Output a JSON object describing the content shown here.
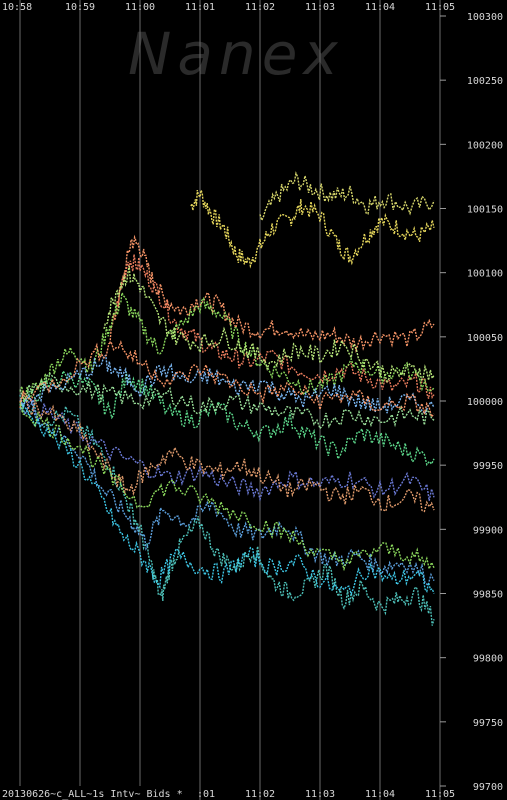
{
  "chart_data": {
    "type": "scatter",
    "watermark": "Nanex",
    "footer_label": "20130626~c_ALL~1s Intv~ Bids *",
    "x_ticks": [
      "10:58",
      "10:59",
      "11:00",
      "11:01",
      "11:02",
      "11:03",
      "11:04",
      "11:05"
    ],
    "y_ticks": [
      100300,
      100250,
      100200,
      100150,
      100100,
      100050,
      100000,
      99950,
      99900,
      99850,
      99800,
      99750,
      99700
    ],
    "xlim": [
      "10:58",
      "11:05"
    ],
    "ylim": [
      99700,
      100300
    ],
    "grid": "vertical",
    "colors": [
      "#f0e060",
      "#e0e070",
      "#ff9a6a",
      "#f08060",
      "#90e060",
      "#60e090",
      "#50c8c0",
      "#60a8e8",
      "#7080e0",
      "#a0e8a0",
      "#c0f080",
      "#40d0f0",
      "#e8a070",
      "#80c0ff"
    ],
    "series": [
      {
        "color_index": 0,
        "points": [
          [
            2.85,
            100152
          ],
          [
            3.0,
            100162
          ],
          [
            3.2,
            100145
          ],
          [
            3.4,
            100135
          ],
          [
            3.6,
            100115
          ],
          [
            3.8,
            100108
          ],
          [
            4.0,
            100120
          ],
          [
            4.2,
            100135
          ],
          [
            4.5,
            100142
          ],
          [
            4.7,
            100152
          ],
          [
            5.0,
            100145
          ],
          [
            5.3,
            100122
          ],
          [
            5.5,
            100112
          ],
          [
            5.8,
            100130
          ],
          [
            6.0,
            100140
          ],
          [
            6.3,
            100135
          ],
          [
            6.6,
            100128
          ],
          [
            6.9,
            100135
          ]
        ]
      },
      {
        "color_index": 1,
        "points": [
          [
            4.0,
            100140
          ],
          [
            4.3,
            100160
          ],
          [
            4.6,
            100172
          ],
          [
            4.9,
            100165
          ],
          [
            5.2,
            100160
          ],
          [
            5.5,
            100162
          ],
          [
            5.8,
            100152
          ],
          [
            6.1,
            100158
          ],
          [
            6.5,
            100150
          ],
          [
            6.9,
            100156
          ]
        ]
      },
      {
        "color_index": 2,
        "points": [
          [
            1.5,
            100050
          ],
          [
            1.7,
            100090
          ],
          [
            1.85,
            100125
          ],
          [
            2.0,
            100120
          ],
          [
            2.2,
            100095
          ],
          [
            2.4,
            100080
          ],
          [
            2.7,
            100070
          ],
          [
            3.0,
            100080
          ],
          [
            3.3,
            100075
          ],
          [
            3.6,
            100060
          ],
          [
            4.0,
            100055
          ],
          [
            4.4,
            100058
          ],
          [
            4.8,
            100050
          ],
          [
            5.2,
            100052
          ],
          [
            5.6,
            100045
          ],
          [
            6.0,
            100052
          ],
          [
            6.5,
            100048
          ],
          [
            6.9,
            100060
          ]
        ]
      },
      {
        "color_index": 3,
        "points": [
          [
            1.6,
            100070
          ],
          [
            1.8,
            100110
          ],
          [
            2.0,
            100105
          ],
          [
            2.3,
            100085
          ],
          [
            2.6,
            100060
          ],
          [
            2.9,
            100050
          ],
          [
            3.2,
            100040
          ],
          [
            3.5,
            100035
          ],
          [
            3.8,
            100030
          ],
          [
            4.2,
            100035
          ],
          [
            4.6,
            100025
          ],
          [
            5.0,
            100020
          ],
          [
            5.4,
            100025
          ],
          [
            5.8,
            100018
          ],
          [
            6.2,
            100010
          ],
          [
            6.6,
            100015
          ],
          [
            6.9,
            100005
          ]
        ]
      },
      {
        "color_index": 4,
        "points": [
          [
            0.0,
            100005
          ],
          [
            0.3,
            100010
          ],
          [
            0.6,
            100030
          ],
          [
            0.9,
            100040
          ],
          [
            1.2,
            100025
          ],
          [
            1.5,
            100060
          ],
          [
            1.7,
            100080
          ],
          [
            2.0,
            100060
          ],
          [
            2.3,
            100040
          ],
          [
            2.6,
            100055
          ],
          [
            3.0,
            100075
          ],
          [
            3.3,
            100070
          ],
          [
            3.7,
            100045
          ],
          [
            4.0,
            100030
          ],
          [
            4.4,
            100020
          ],
          [
            4.8,
            100010
          ],
          [
            5.2,
            100015
          ],
          [
            5.6,
            100030
          ],
          [
            6.0,
            100020
          ],
          [
            6.4,
            100025
          ],
          [
            6.9,
            100010
          ]
        ]
      },
      {
        "color_index": 5,
        "points": [
          [
            0.0,
            99995
          ],
          [
            0.4,
            100010
          ],
          [
            0.8,
            100020
          ],
          [
            1.2,
            100010
          ],
          [
            1.5,
            99990
          ],
          [
            1.8,
            100020
          ],
          [
            2.1,
            100010
          ],
          [
            2.5,
            99990
          ],
          [
            2.9,
            99985
          ],
          [
            3.3,
            99995
          ],
          [
            3.7,
            99980
          ],
          [
            4.1,
            99975
          ],
          [
            4.5,
            99985
          ],
          [
            4.9,
            99970
          ],
          [
            5.3,
            99960
          ],
          [
            5.7,
            99975
          ],
          [
            6.1,
            99968
          ],
          [
            6.5,
            99960
          ],
          [
            6.9,
            99955
          ]
        ]
      },
      {
        "color_index": 6,
        "points": [
          [
            0.0,
            100000
          ],
          [
            0.4,
            99985
          ],
          [
            0.8,
            99990
          ],
          [
            1.2,
            99970
          ],
          [
            1.5,
            99950
          ],
          [
            1.8,
            99920
          ],
          [
            2.0,
            99900
          ],
          [
            2.2,
            99870
          ],
          [
            2.35,
            99845
          ],
          [
            2.5,
            99870
          ],
          [
            2.7,
            99890
          ],
          [
            3.0,
            99905
          ],
          [
            3.3,
            99880
          ],
          [
            3.6,
            99870
          ],
          [
            3.9,
            99885
          ],
          [
            4.2,
            99860
          ],
          [
            4.5,
            99850
          ],
          [
            4.8,
            99855
          ],
          [
            5.1,
            99870
          ],
          [
            5.4,
            99845
          ],
          [
            5.7,
            99855
          ],
          [
            6.0,
            99840
          ],
          [
            6.3,
            99845
          ],
          [
            6.6,
            99850
          ],
          [
            6.9,
            99830
          ]
        ]
      },
      {
        "color_index": 7,
        "points": [
          [
            0.0,
            100002
          ],
          [
            0.5,
            99980
          ],
          [
            1.0,
            99960
          ],
          [
            1.4,
            99930
          ],
          [
            1.8,
            99910
          ],
          [
            2.1,
            99890
          ],
          [
            2.4,
            99915
          ],
          [
            2.8,
            99905
          ],
          [
            3.2,
            99920
          ],
          [
            3.6,
            99900
          ],
          [
            4.0,
            99895
          ],
          [
            4.4,
            99905
          ],
          [
            4.8,
            99885
          ],
          [
            5.2,
            99875
          ],
          [
            5.6,
            99880
          ],
          [
            6.0,
            99870
          ],
          [
            6.4,
            99875
          ],
          [
            6.9,
            99860
          ]
        ]
      },
      {
        "color_index": 8,
        "points": [
          [
            0.0,
            99998
          ],
          [
            0.5,
            99990
          ],
          [
            1.0,
            99975
          ],
          [
            1.5,
            99960
          ],
          [
            2.0,
            99950
          ],
          [
            2.5,
            99940
          ],
          [
            3.0,
            99945
          ],
          [
            3.5,
            99935
          ],
          [
            4.0,
            99930
          ],
          [
            4.5,
            99940
          ],
          [
            5.0,
            99935
          ],
          [
            5.5,
            99940
          ],
          [
            6.0,
            99930
          ],
          [
            6.5,
            99938
          ],
          [
            6.9,
            99925
          ]
        ]
      },
      {
        "color_index": 9,
        "points": [
          [
            0.0,
            100004
          ],
          [
            0.5,
            100015
          ],
          [
            1.0,
            100010
          ],
          [
            1.5,
            100005
          ],
          [
            2.0,
            100000
          ],
          [
            2.5,
            100005
          ],
          [
            3.0,
            99995
          ],
          [
            3.5,
            100000
          ],
          [
            4.0,
            99995
          ],
          [
            4.5,
            99990
          ],
          [
            5.0,
            99985
          ],
          [
            5.5,
            99990
          ],
          [
            6.0,
            99985
          ],
          [
            6.5,
            99990
          ],
          [
            6.9,
            99985
          ]
        ]
      },
      {
        "color_index": 10,
        "points": [
          [
            1.4,
            100060
          ],
          [
            1.6,
            100085
          ],
          [
            1.8,
            100100
          ],
          [
            2.0,
            100090
          ],
          [
            2.3,
            100065
          ],
          [
            2.6,
            100050
          ],
          [
            3.0,
            100045
          ],
          [
            3.4,
            100050
          ],
          [
            3.8,
            100040
          ],
          [
            4.2,
            100030
          ],
          [
            4.6,
            100040
          ],
          [
            5.0,
            100035
          ],
          [
            5.4,
            100045
          ],
          [
            5.8,
            100030
          ],
          [
            6.2,
            100020
          ],
          [
            6.6,
            100025
          ],
          [
            6.9,
            100020
          ]
        ]
      },
      {
        "color_index": 11,
        "points": [
          [
            0.0,
            99995
          ],
          [
            0.5,
            99975
          ],
          [
            1.0,
            99950
          ],
          [
            1.4,
            99920
          ],
          [
            1.7,
            99895
          ],
          [
            2.0,
            99880
          ],
          [
            2.3,
            99860
          ],
          [
            2.6,
            99880
          ],
          [
            3.0,
            99870
          ],
          [
            3.4,
            99865
          ],
          [
            3.8,
            99880
          ],
          [
            4.2,
            99870
          ],
          [
            4.6,
            99875
          ],
          [
            5.0,
            99860
          ],
          [
            5.4,
            99850
          ],
          [
            5.8,
            99870
          ],
          [
            6.2,
            99860
          ],
          [
            6.6,
            99865
          ],
          [
            6.9,
            99850
          ]
        ]
      },
      {
        "color_index": 12,
        "points": [
          [
            0.0,
            100000
          ],
          [
            0.5,
            99990
          ],
          [
            1.0,
            99975
          ],
          [
            1.5,
            99945
          ],
          [
            1.8,
            99930
          ],
          [
            2.1,
            99945
          ],
          [
            2.5,
            99960
          ],
          [
            2.9,
            99950
          ],
          [
            3.3,
            99945
          ],
          [
            3.7,
            99950
          ],
          [
            4.1,
            99940
          ],
          [
            4.5,
            99930
          ],
          [
            4.9,
            99935
          ],
          [
            5.3,
            99925
          ],
          [
            5.7,
            99930
          ],
          [
            6.1,
            99920
          ],
          [
            6.5,
            99925
          ],
          [
            6.9,
            99915
          ]
        ]
      },
      {
        "color_index": 13,
        "points": [
          [
            0.0,
            100001
          ],
          [
            0.5,
            100008
          ],
          [
            1.0,
            100020
          ],
          [
            1.4,
            100030
          ],
          [
            1.7,
            100020
          ],
          [
            2.0,
            100010
          ],
          [
            2.4,
            100025
          ],
          [
            2.8,
            100015
          ],
          [
            3.2,
            100020
          ],
          [
            3.6,
            100010
          ],
          [
            4.0,
            100015
          ],
          [
            4.4,
            100005
          ],
          [
            4.8,
            100000
          ],
          [
            5.2,
            100010
          ],
          [
            5.6,
            100000
          ],
          [
            6.0,
            99995
          ],
          [
            6.4,
            100000
          ],
          [
            6.9,
            99995
          ]
        ]
      },
      {
        "color_index": 4,
        "points": [
          [
            0.0,
            99995
          ],
          [
            0.5,
            99980
          ],
          [
            1.0,
            99965
          ],
          [
            1.5,
            99940
          ],
          [
            2.0,
            99920
          ],
          [
            2.5,
            99935
          ],
          [
            3.0,
            99925
          ],
          [
            3.5,
            99915
          ],
          [
            4.0,
            99905
          ],
          [
            4.5,
            99895
          ],
          [
            5.0,
            99880
          ],
          [
            5.5,
            99875
          ],
          [
            6.0,
            99885
          ],
          [
            6.5,
            99880
          ],
          [
            6.9,
            99870
          ]
        ]
      },
      {
        "color_index": 2,
        "points": [
          [
            0.0,
            100003
          ],
          [
            0.6,
            100015
          ],
          [
            1.2,
            100035
          ],
          [
            1.6,
            100045
          ],
          [
            2.0,
            100030
          ],
          [
            2.5,
            100015
          ],
          [
            3.0,
            100025
          ],
          [
            3.5,
            100015
          ],
          [
            4.0,
            100005
          ],
          [
            4.5,
            100010
          ],
          [
            5.0,
            100000
          ],
          [
            5.5,
            100005
          ],
          [
            6.0,
            99995
          ],
          [
            6.5,
            100000
          ],
          [
            6.9,
            99990
          ]
        ]
      }
    ]
  }
}
